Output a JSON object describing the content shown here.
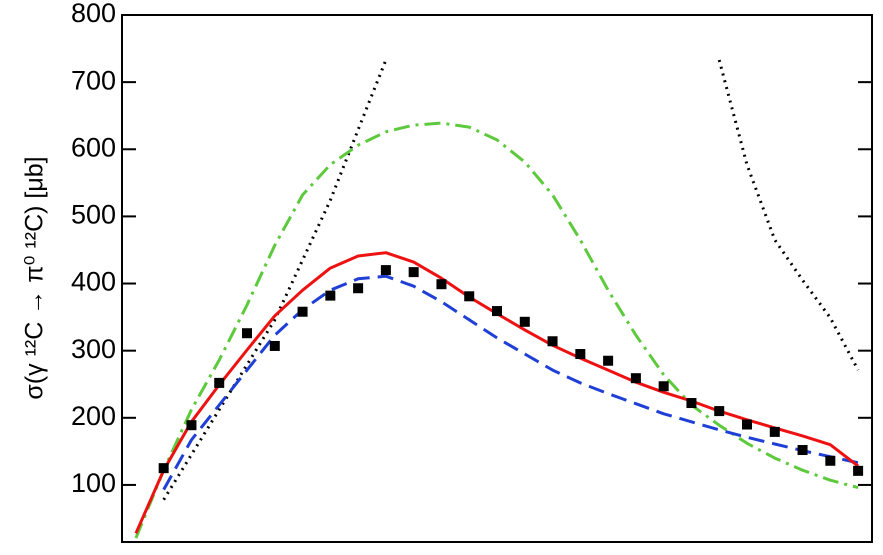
{
  "chart_data": {
    "type": "line",
    "y_label": "σ(γ ¹²C → π⁰ ¹²C) [μb]",
    "categories": [
      null,
      null,
      null,
      null,
      null,
      null,
      null,
      null,
      null,
      null,
      null,
      null,
      null,
      null,
      null,
      null,
      null,
      null,
      null,
      null,
      null,
      null,
      null,
      null,
      null,
      null,
      null
    ],
    "ylim": [
      15,
      800
    ],
    "yticks": [
      100,
      200,
      300,
      400,
      500,
      600,
      700,
      800
    ],
    "series": [
      {
        "color": "#000000",
        "style": "dotted",
        "values": [
          null,
          78,
          145,
          212,
          279,
          346,
          435,
          524,
          629,
          733,
          null,
          null,
          null,
          null,
          null,
          null,
          null,
          null,
          null,
          null,
          null,
          733,
          577,
          465,
          405,
          349,
          271
        ]
      },
      {
        "color": "#5dc93c",
        "style": "dashdot",
        "values": [
          21,
          122,
          212,
          286,
          368,
          457,
          532,
          577,
          606,
          626,
          636,
          639,
          633,
          614,
          581,
          532,
          465,
          390,
          323,
          264,
          219,
          189,
          162,
          140,
          122,
          107,
          96
        ]
      },
      {
        "color": "#1f3fd6",
        "style": "dashed",
        "values": [
          null,
          93,
          167,
          219,
          271,
          323,
          361,
          390,
          407,
          411,
          396,
          373,
          346,
          319,
          295,
          271,
          252,
          236,
          221,
          206,
          194,
          182,
          171,
          161,
          151,
          142,
          133
        ]
      },
      {
        "color": "#ee1111",
        "style": "solid",
        "values": [
          28,
          122,
          194,
          249,
          301,
          352,
          390,
          423,
          441,
          446,
          432,
          408,
          380,
          355,
          331,
          308,
          289,
          271,
          253,
          238,
          225,
          210,
          197,
          185,
          173,
          160,
          128
        ]
      },
      {
        "color": "#000000",
        "style": "square",
        "values": [
          null,
          125,
          189,
          252,
          326,
          307,
          358,
          382,
          393,
          420,
          417,
          399,
          381,
          359,
          343,
          314,
          295,
          285,
          259,
          247,
          222,
          210,
          190,
          179,
          152,
          136,
          121
        ]
      }
    ]
  }
}
